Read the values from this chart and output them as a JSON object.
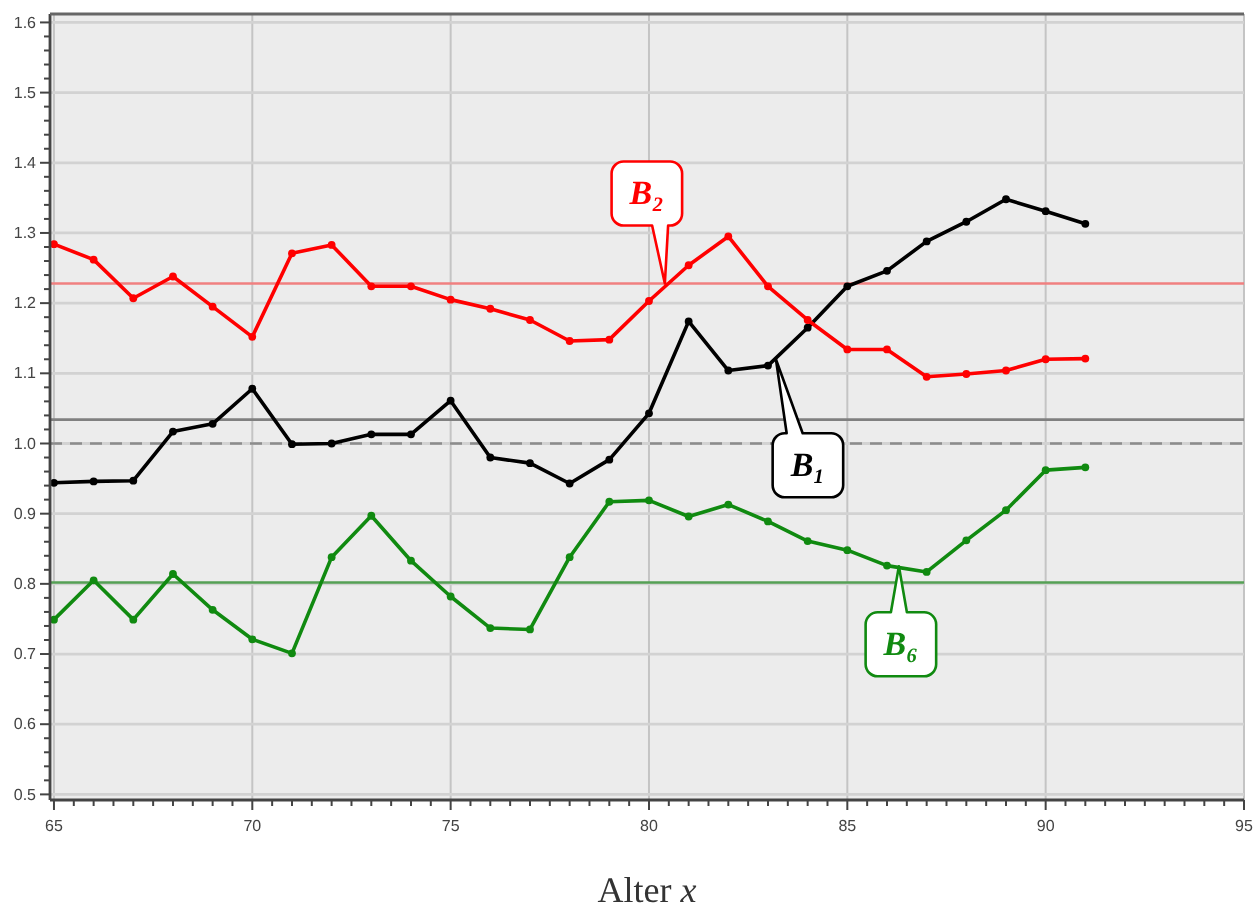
{
  "chart_data": {
    "type": "line",
    "xlabel": "Alter x",
    "x": [
      65,
      66,
      67,
      68,
      69,
      70,
      71,
      72,
      73,
      74,
      75,
      76,
      77,
      78,
      79,
      80,
      81,
      82,
      83,
      84,
      85,
      86,
      87,
      88,
      89,
      90,
      91
    ],
    "series": [
      {
        "color": "#000000",
        "values": [
          0.944,
          0.946,
          0.947,
          1.017,
          1.028,
          1.078,
          0.999,
          1.0,
          1.013,
          1.013,
          1.061,
          0.98,
          0.972,
          0.943,
          0.977,
          1.043,
          1.174,
          1.104,
          1.111,
          1.165,
          1.224,
          1.246,
          1.288,
          1.316,
          1.348,
          1.331,
          1.313
        ]
      },
      {
        "color": "#ff0000",
        "values": [
          1.284,
          1.262,
          1.207,
          1.238,
          1.195,
          1.152,
          1.271,
          1.283,
          1.224,
          1.224,
          1.205,
          1.192,
          1.176,
          1.146,
          1.148,
          1.203,
          1.254,
          1.295,
          1.224,
          1.176,
          1.134,
          1.134,
          1.095,
          1.099,
          1.104,
          1.12,
          1.121
        ]
      },
      {
        "color": "#108a10",
        "values": [
          0.749,
          0.805,
          0.749,
          0.814,
          0.763,
          0.721,
          0.701,
          0.838,
          0.897,
          0.833,
          0.782,
          0.737,
          0.735,
          0.838,
          0.917,
          0.919,
          0.896,
          0.913,
          0.889,
          0.861,
          0.848,
          0.826,
          0.817,
          0.862,
          0.905,
          0.962,
          0.966
        ]
      }
    ],
    "xlim": [
      64.9,
      95
    ],
    "ylim": [
      0.492,
      1.612
    ],
    "xticks": [
      65,
      {
        "value": 65.5,
        "label": null
      },
      {
        "value": 66,
        "label": null
      },
      {
        "value": 66.5,
        "label": null
      },
      {
        "value": 67,
        "label": null
      },
      {
        "value": 67.5,
        "label": null
      },
      {
        "value": 68,
        "label": null
      },
      {
        "value": 68.5,
        "label": null
      },
      {
        "value": 69,
        "label": null
      },
      {
        "value": 69.5,
        "label": null
      },
      70,
      {
        "value": 70.5,
        "label": null
      },
      {
        "value": 71,
        "label": null
      },
      {
        "value": 71.5,
        "label": null
      },
      {
        "value": 72,
        "label": null
      },
      {
        "value": 72.5,
        "label": null
      },
      {
        "value": 73,
        "label": null
      },
      {
        "value": 73.5,
        "label": null
      },
      {
        "value": 74,
        "label": null
      },
      {
        "value": 74.5,
        "label": null
      },
      75,
      {
        "value": 75.5,
        "label": null
      },
      {
        "value": 76,
        "label": null
      },
      {
        "value": 76.5,
        "label": null
      },
      {
        "value": 77,
        "label": null
      },
      {
        "value": 77.5,
        "label": null
      },
      {
        "value": 78,
        "label": null
      },
      {
        "value": 78.5,
        "label": null
      },
      {
        "value": 79,
        "label": null
      },
      {
        "value": 79.5,
        "label": null
      },
      80,
      {
        "value": 80.5,
        "label": null
      },
      {
        "value": 81,
        "label": null
      },
      {
        "value": 81.5,
        "label": null
      },
      {
        "value": 82,
        "label": null
      },
      {
        "value": 82.5,
        "label": null
      },
      {
        "value": 83,
        "label": null
      },
      {
        "value": 83.5,
        "label": null
      },
      {
        "value": 84,
        "label": null
      },
      {
        "value": 84.5,
        "label": null
      },
      85,
      {
        "value": 85.5,
        "label": null
      },
      {
        "value": 86,
        "label": null
      },
      {
        "value": 86.5,
        "label": null
      },
      {
        "value": 87,
        "label": null
      },
      {
        "value": 87.5,
        "label": null
      },
      {
        "value": 88,
        "label": null
      },
      {
        "value": 88.5,
        "label": null
      },
      {
        "value": 89,
        "label": null
      },
      {
        "value": 89.5,
        "label": null
      },
      90,
      {
        "value": 90.5,
        "label": null
      },
      {
        "value": 91,
        "label": null
      },
      {
        "value": 91.5,
        "label": null
      },
      {
        "value": 92,
        "label": null
      },
      {
        "value": 92.5,
        "label": null
      },
      {
        "value": 93,
        "label": null
      },
      {
        "value": 93.5,
        "label": null
      },
      {
        "value": 94,
        "label": null
      },
      {
        "value": 94.5,
        "label": null
      },
      95
    ],
    "yticks": [
      0.5,
      {
        "value": 0.52,
        "label": null
      },
      {
        "value": 0.54,
        "label": null
      },
      {
        "value": 0.56,
        "label": null
      },
      {
        "value": 0.58,
        "label": null
      },
      0.6,
      {
        "value": 0.62,
        "label": null
      },
      {
        "value": 0.64,
        "label": null
      },
      {
        "value": 0.66,
        "label": null
      },
      {
        "value": 0.68,
        "label": null
      },
      0.7,
      {
        "value": 0.72,
        "label": null
      },
      {
        "value": 0.74,
        "label": null
      },
      {
        "value": 0.76,
        "label": null
      },
      {
        "value": 0.78,
        "label": null
      },
      0.8,
      {
        "value": 0.82,
        "label": null
      },
      {
        "value": 0.84,
        "label": null
      },
      {
        "value": 0.86,
        "label": null
      },
      {
        "value": 0.88,
        "label": null
      },
      0.9,
      {
        "value": 0.92,
        "label": null
      },
      {
        "value": 0.94,
        "label": null
      },
      {
        "value": 0.96,
        "label": null
      },
      {
        "value": 0.98,
        "label": null
      },
      {
        "value": 1,
        "label": "1.0"
      },
      {
        "value": 1.02,
        "label": null
      },
      {
        "value": 1.04,
        "label": null
      },
      {
        "value": 1.06,
        "label": null
      },
      {
        "value": 1.08,
        "label": null
      },
      1.1,
      {
        "value": 1.12,
        "label": null
      },
      {
        "value": 1.14,
        "label": null
      },
      {
        "value": 1.16,
        "label": null
      },
      {
        "value": 1.18,
        "label": null
      },
      1.2,
      {
        "value": 1.22,
        "label": null
      },
      {
        "value": 1.24,
        "label": null
      },
      {
        "value": 1.26,
        "label": null
      },
      {
        "value": 1.28,
        "label": null
      },
      1.3,
      {
        "value": 1.32,
        "label": null
      },
      {
        "value": 1.34,
        "label": null
      },
      {
        "value": 1.36,
        "label": null
      },
      {
        "value": 1.38,
        "label": null
      },
      1.4,
      {
        "value": 1.42,
        "label": null
      },
      {
        "value": 1.44,
        "label": null
      },
      {
        "value": 1.46,
        "label": null
      },
      {
        "value": 1.48,
        "label": null
      },
      1.5,
      {
        "value": 1.52,
        "label": null
      },
      {
        "value": 1.54,
        "label": null
      },
      {
        "value": 1.56,
        "label": null
      },
      {
        "value": 1.58,
        "label": null
      },
      1.6
    ],
    "grid": true,
    "marker": "circle",
    "line_style": "solid",
    "ref_lines": [
      {
        "axis": "y",
        "value": 1.228,
        "color": "#f08080"
      },
      {
        "axis": "y",
        "value": 1.034,
        "color": "#808080"
      },
      {
        "axis": "y",
        "value": 1.0,
        "color": "#8c8c8c",
        "line_style": "dashed"
      },
      {
        "axis": "y",
        "value": 0.802,
        "color": "#55a055"
      }
    ],
    "annotations": [
      {
        "text": "B₂",
        "x": 80.4,
        "y": 1.228
      },
      {
        "text": "B₁",
        "x": 83.2,
        "y": 1.12
      },
      {
        "text": "B₆",
        "x": 86.3,
        "y": 0.825
      }
    ]
  }
}
